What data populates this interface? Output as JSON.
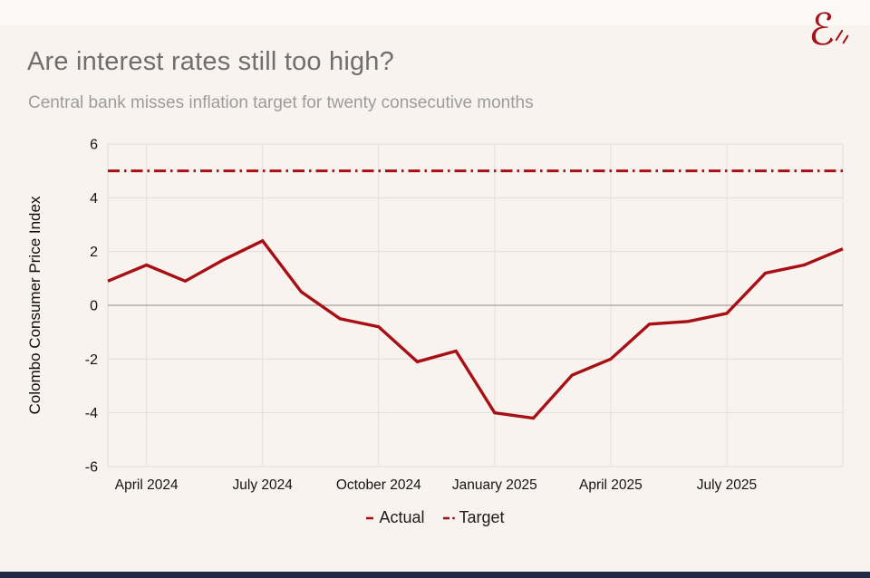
{
  "page": {
    "background": "#f8f3ee",
    "bottom_bar_color": "#1f2946",
    "accent_red": "#a80f15"
  },
  "header": {
    "title": "Are interest rates still too high?",
    "subtitle": "Central bank misses inflation target for twenty consecutive months"
  },
  "brand": {
    "logo_glyph": "ℰ",
    "logo_color": "#a4121b"
  },
  "chart_data": {
    "type": "line",
    "title": "Are interest rates still too high?",
    "subtitle": "Central bank misses inflation target for twenty consecutive months",
    "ylabel": "Colombo Consumer Price Index",
    "xlabel": "",
    "ylim": [
      -6,
      6
    ],
    "yticks": [
      6,
      4,
      2,
      0,
      -2,
      -4,
      -6
    ],
    "grid": true,
    "legend_position": "bottom",
    "grid_color": "#e3ded9",
    "zero_line_color": "#8d8d8d",
    "x": [
      "March 2024",
      "April 2024",
      "May 2024",
      "June 2024",
      "July 2024",
      "August 2024",
      "September 2024",
      "October 2024",
      "November 2024",
      "December 2024",
      "January 2025",
      "February 2025",
      "March 2025",
      "April 2025",
      "May 2025",
      "June 2025",
      "July 2025",
      "August 2025",
      "September 2025",
      "October 2025"
    ],
    "x_tick_labels": [
      "April 2024",
      "July 2024",
      "October 2024",
      "January 2025",
      "April 2025",
      "July 2025"
    ],
    "x_tick_indices": [
      1,
      4,
      7,
      10,
      13,
      16
    ],
    "series": [
      {
        "name": "Actual",
        "line_style": "solid",
        "color": "#a80f15",
        "values": [
          0.9,
          1.5,
          0.9,
          1.7,
          2.4,
          0.5,
          -0.5,
          -0.8,
          -2.1,
          -1.7,
          -4.0,
          -4.2,
          -2.6,
          -2.0,
          -0.7,
          -0.6,
          -0.3,
          1.2,
          1.5,
          2.1
        ]
      },
      {
        "name": "Target",
        "line_style": "dashdot",
        "color": "#a80f15",
        "constant": 5
      }
    ]
  },
  "legend": {
    "items": [
      {
        "label": "Actual",
        "swatch": "dash"
      },
      {
        "label": "Target",
        "swatch": "dash-dot"
      }
    ]
  }
}
